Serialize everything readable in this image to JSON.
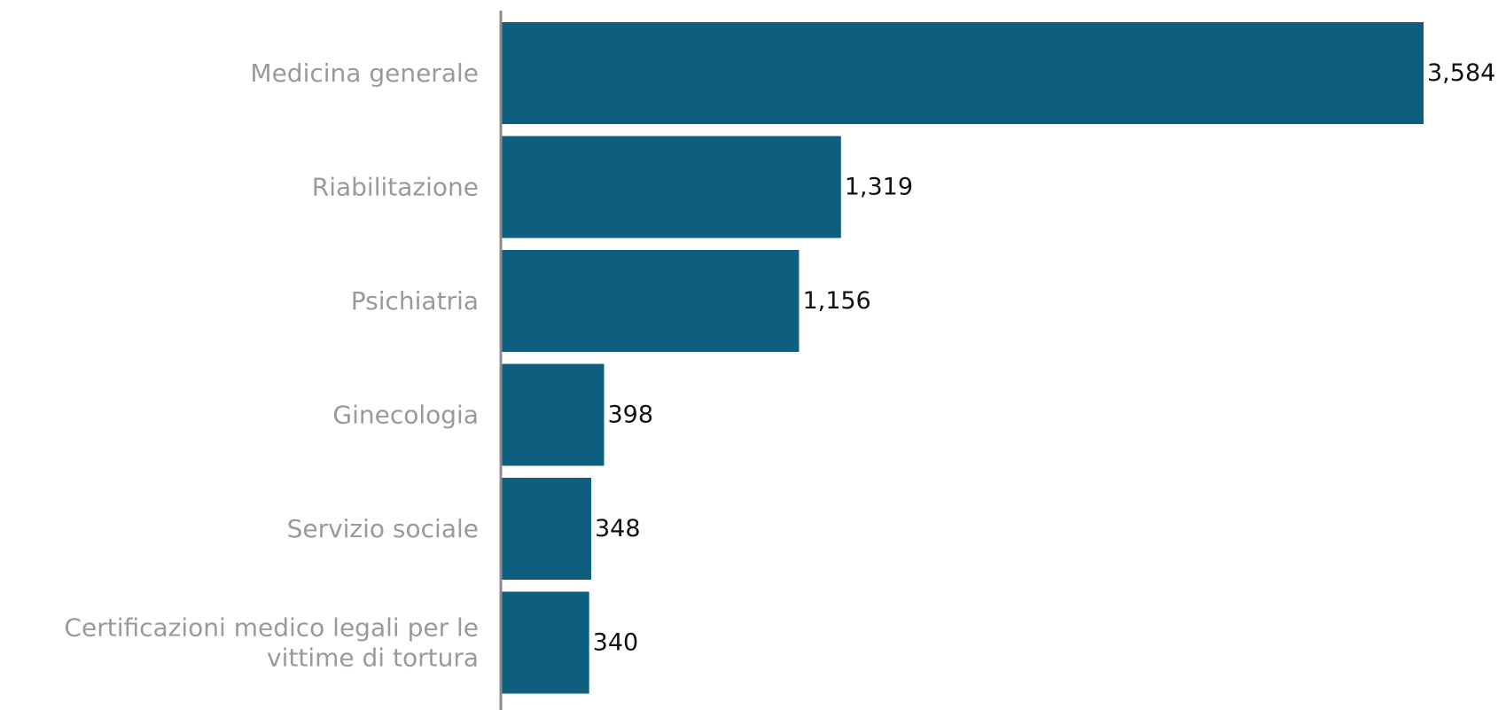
{
  "chart_data": {
    "type": "bar",
    "orientation": "horizontal",
    "categories": [
      [
        "Medicina generale"
      ],
      [
        "Riabilitazione"
      ],
      [
        "Psichiatria"
      ],
      [
        "Ginecologia"
      ],
      [
        "Servizio sociale"
      ],
      [
        "Certificazioni medico legali per le",
        "vittime di tortura"
      ]
    ],
    "values": [
      3584,
      1319,
      1156,
      398,
      348,
      340
    ],
    "value_labels": [
      "3,584",
      "1,319",
      "1,156",
      "398",
      "348",
      "340"
    ],
    "title": "",
    "xlabel": "",
    "ylabel": "",
    "xlim": [
      0,
      3584
    ],
    "grid": false,
    "legend": "none",
    "bar_color": "#0e5f7f",
    "axis_color": "#8c8c8c",
    "category_label_color": "#9a9a9a",
    "value_label_color": "#111111"
  }
}
